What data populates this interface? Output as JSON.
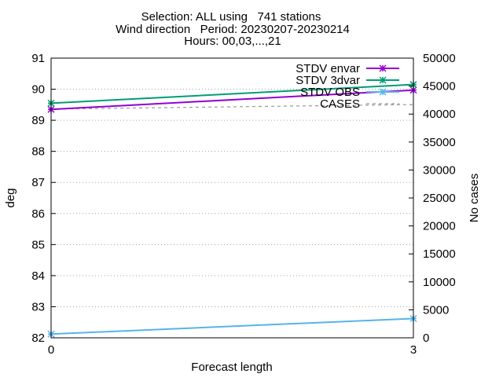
{
  "chart_data": {
    "type": "line",
    "title_lines": [
      "Selection: ALL using   741 stations",
      "Wind direction   Period: 20230207-20230214",
      "Hours: 00,03,...,21"
    ],
    "xlabel": "Forecast length",
    "ylabel": "deg",
    "y2label": "No cases",
    "x": [
      0,
      3
    ],
    "xticks": [
      0,
      3
    ],
    "xlim": [
      0,
      3
    ],
    "ylim": [
      82,
      91
    ],
    "yticks": [
      82,
      83,
      84,
      85,
      86,
      87,
      88,
      89,
      90,
      91
    ],
    "y2lim": [
      0,
      50000
    ],
    "y2ticks": [
      0,
      5000,
      10000,
      15000,
      20000,
      25000,
      30000,
      35000,
      40000,
      45000,
      50000
    ],
    "grid": true,
    "legend_position": "top-right",
    "series": [
      {
        "name": "STDV envar",
        "axis": "y",
        "values": [
          89.35,
          89.97
        ],
        "color": "#9400d3",
        "marker": "star"
      },
      {
        "name": "STDV 3dvar",
        "axis": "y",
        "values": [
          89.55,
          90.15
        ],
        "color": "#009e73",
        "marker": "star"
      },
      {
        "name": "STDV OBS",
        "axis": "y",
        "values": [
          82.12,
          82.62
        ],
        "color": "#56b4e9",
        "marker": "star"
      },
      {
        "name": "CASES",
        "axis": "y2",
        "values": [
          40900,
          41700
        ],
        "color": "#999999",
        "marker": "none",
        "dashed": true
      }
    ]
  }
}
